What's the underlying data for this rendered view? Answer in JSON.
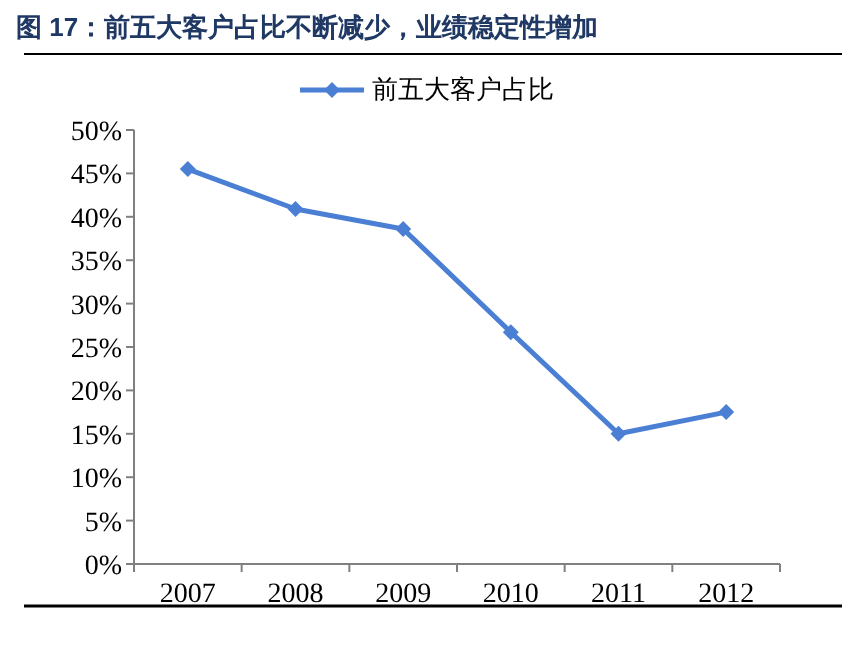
{
  "chart_data": {
    "type": "line",
    "title": "图 17：前五大客户占比不断减少，业绩稳定性增加",
    "categories": [
      "2007",
      "2008",
      "2009",
      "2010",
      "2011",
      "2012"
    ],
    "series": [
      {
        "name": "前五大客户占比",
        "color": "#4a7fd4",
        "values": [
          45.5,
          40.9,
          38.6,
          26.7,
          15.0,
          17.5
        ]
      }
    ],
    "ylim": [
      0,
      50
    ],
    "yticks": [
      {
        "value": 0,
        "label": "0%"
      },
      {
        "value": 5,
        "label": "5%"
      },
      {
        "value": 10,
        "label": "10%"
      },
      {
        "value": 15,
        "label": "15%"
      },
      {
        "value": 20,
        "label": "20%"
      },
      {
        "value": 25,
        "label": "25%"
      },
      {
        "value": 30,
        "label": "30%"
      },
      {
        "value": 35,
        "label": "35%"
      },
      {
        "value": 40,
        "label": "40%"
      },
      {
        "value": 45,
        "label": "45%"
      },
      {
        "value": 50,
        "label": "50%"
      }
    ],
    "legend": "top",
    "marker": "diamond",
    "line_style": "solid",
    "grid": false
  }
}
